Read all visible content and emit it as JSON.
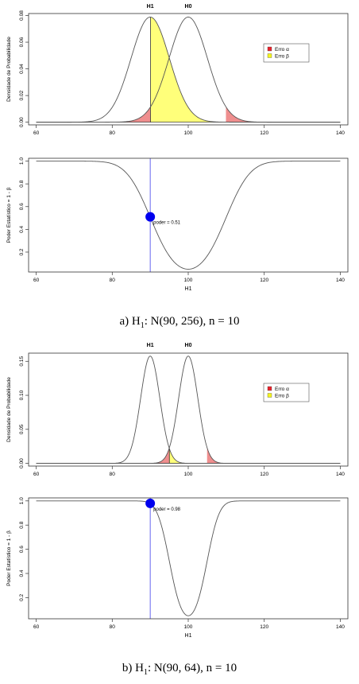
{
  "figure_a": {
    "caption_pre": "a) H",
    "caption_sub": "1",
    "caption_post": ": N(90, 256), n = 10"
  },
  "figure_b": {
    "caption_pre": "b) H",
    "caption_sub": "1",
    "caption_post": ": N(90, 64), n = 10"
  },
  "chart_data": [
    {
      "id": "a-density",
      "type": "line",
      "title": "",
      "top_labels": [
        {
          "x": 90,
          "text": "H1"
        },
        {
          "x": 100,
          "text": "H0"
        }
      ],
      "xlabel": "",
      "ylabel": "Densidade de Probabilidade",
      "xlim": [
        58,
        142
      ],
      "ylim": [
        -0.002,
        0.0815
      ],
      "xticks": [
        60,
        80,
        100,
        120,
        140
      ],
      "yticks": [
        0.0,
        0.02,
        0.04,
        0.06,
        0.08
      ],
      "ytick_labels": [
        "0.00",
        "0.02",
        "0.04",
        "0.06",
        "0.08"
      ],
      "series": [
        {
          "mu": 90,
          "sd": 5.06
        },
        {
          "mu": 100,
          "sd": 5.06
        }
      ],
      "shading": {
        "alpha_lower": 90.08,
        "alpha_upper": 109.92,
        "beta_threshold": 90.08
      },
      "domain": [
        60,
        140
      ],
      "legend": {
        "position": "right",
        "entries": [
          {
            "label": "Erro α",
            "color": "#e8242d"
          },
          {
            "label": "Erro β",
            "color": "#f5f51e"
          }
        ]
      },
      "colors": {
        "alpha_fill": "#ef8e8e",
        "beta_fill": "#ffff7a",
        "curve": "#555555"
      }
    },
    {
      "id": "a-power",
      "type": "line",
      "title": "",
      "xlabel": "H1",
      "ylabel": "Poder Estatístico = 1 - β",
      "xlim": [
        58,
        142
      ],
      "ylim": [
        0.025,
        1.025
      ],
      "xticks": [
        60,
        80,
        100,
        120,
        140
      ],
      "yticks": [
        0.2,
        0.4,
        0.6,
        0.8,
        1.0
      ],
      "ytick_labels": [
        "0.2",
        "0.4",
        "0.6",
        "0.8",
        "1.0"
      ],
      "power_curve": {
        "mu0": 100,
        "se": 5.06,
        "lower": 90.08,
        "upper": 109.92
      },
      "domain": [
        60,
        140
      ],
      "vline_x": 90,
      "point": {
        "x": 90,
        "y": 0.51
      },
      "annotation": "poder =  0.51",
      "colors": {
        "point": "#0000ee",
        "vline": "#5555ee",
        "curve": "#555555"
      }
    },
    {
      "id": "b-density",
      "type": "line",
      "title": "",
      "top_labels": [
        {
          "x": 90,
          "text": "H1"
        },
        {
          "x": 100,
          "text": "H0"
        }
      ],
      "xlabel": "",
      "ylabel": "Densidade de Probabilidade",
      "xlim": [
        58,
        142
      ],
      "ylim": [
        -0.004,
        0.162
      ],
      "xticks": [
        60,
        80,
        100,
        120,
        140
      ],
      "yticks": [
        0.0,
        0.05,
        0.1,
        0.15
      ],
      "ytick_labels": [
        "0.00",
        "0.05",
        "0.10",
        "0.15"
      ],
      "series": [
        {
          "mu": 90,
          "sd": 2.53
        },
        {
          "mu": 100,
          "sd": 2.53
        }
      ],
      "shading": {
        "alpha_lower": 95.04,
        "alpha_upper": 104.96,
        "beta_threshold": 95.04
      },
      "domain": [
        60,
        140
      ],
      "legend": {
        "position": "right",
        "entries": [
          {
            "label": "Erro α",
            "color": "#e8242d"
          },
          {
            "label": "Erro β",
            "color": "#f5f51e"
          }
        ]
      },
      "colors": {
        "alpha_fill": "#ef8e8e",
        "beta_fill": "#ffff7a",
        "curve": "#555555"
      }
    },
    {
      "id": "b-power",
      "type": "line",
      "title": "",
      "xlabel": "H1",
      "ylabel": "Poder Estatístico = 1 - β",
      "xlim": [
        58,
        142
      ],
      "ylim": [
        0.025,
        1.025
      ],
      "xticks": [
        60,
        80,
        100,
        120,
        140
      ],
      "yticks": [
        0.2,
        0.4,
        0.6,
        0.8,
        1.0
      ],
      "ytick_labels": [
        "0.2",
        "0.4",
        "0.6",
        "0.8",
        "1.0"
      ],
      "power_curve": {
        "mu0": 100,
        "se": 2.53,
        "lower": 95.04,
        "upper": 104.96
      },
      "domain": [
        60,
        140
      ],
      "vline_x": 90,
      "point": {
        "x": 90,
        "y": 0.98
      },
      "annotation": "poder =  0.98",
      "colors": {
        "point": "#0000ee",
        "vline": "#5555ee",
        "curve": "#555555"
      }
    }
  ]
}
